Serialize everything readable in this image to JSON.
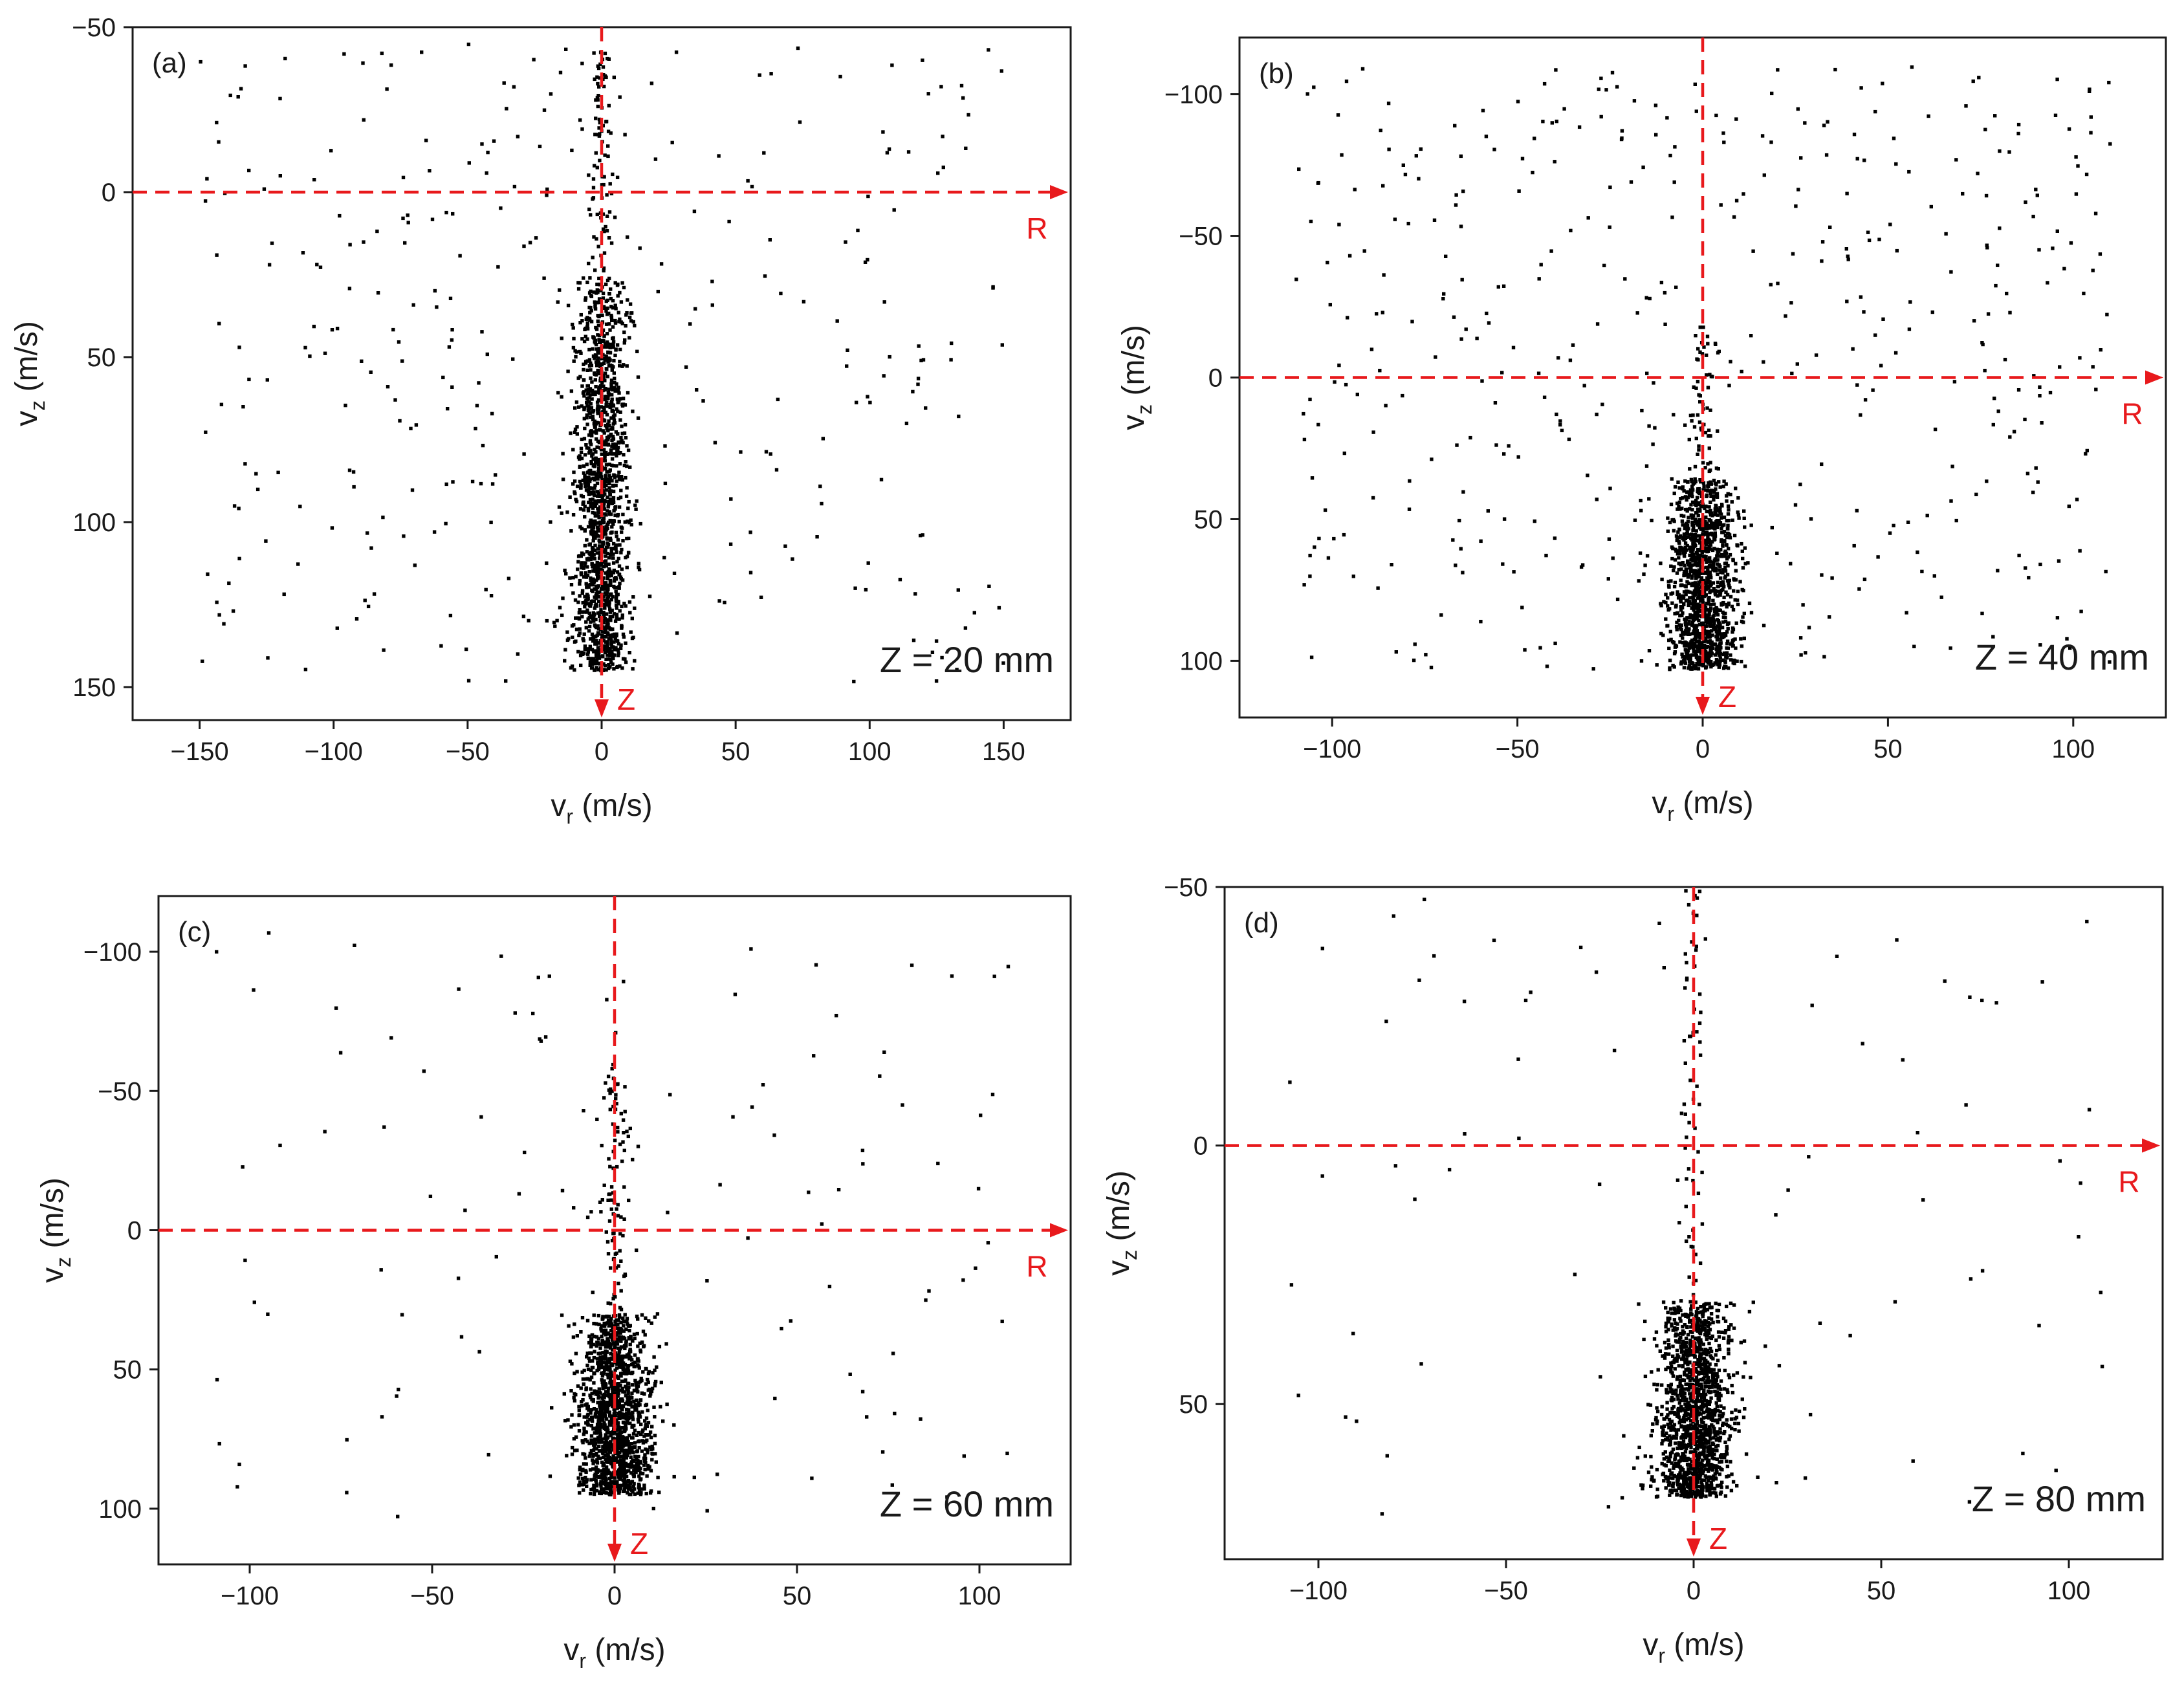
{
  "chart_data": [
    {
      "type": "scatter",
      "panel_label": "(a)",
      "annotation": "Z = 20 mm",
      "xlabel_main": "v",
      "xlabel_sub": "r",
      "xlabel_unit": " (m/s)",
      "ylabel_main": "v",
      "ylabel_sub": "z",
      "ylabel_unit": " (m/s)",
      "xlim": [
        -175,
        175
      ],
      "ylim": [
        -50,
        160
      ],
      "y_inverted": true,
      "xticks": [
        -150,
        -100,
        -50,
        0,
        50,
        100,
        150
      ],
      "yticks": [
        -50,
        0,
        50,
        100,
        150
      ],
      "axis_r_label": "R",
      "axis_z_label": "Z",
      "marker_color": "#000000",
      "axis_line_color": "#e8191c",
      "core": {
        "x_center": 0,
        "x_spread": 5,
        "y_from": 25,
        "y_to": 145,
        "count": 1500
      },
      "sparse": {
        "x_range": [
          -150,
          150
        ],
        "y_range": [
          -45,
          150
        ],
        "count": 330
      },
      "stem": {
        "x_spread": 2.2,
        "y_from": -45,
        "y_to": 25,
        "count": 90
      }
    },
    {
      "type": "scatter",
      "panel_label": "(b)",
      "annotation": "Z = 40 mm",
      "xlabel_main": "v",
      "xlabel_sub": "r",
      "xlabel_unit": " (m/s)",
      "ylabel_main": "v",
      "ylabel_sub": "z",
      "ylabel_unit": " (m/s)",
      "xlim": [
        -125,
        125
      ],
      "ylim": [
        -120,
        120
      ],
      "y_inverted": true,
      "xticks": [
        -100,
        -50,
        0,
        50,
        100
      ],
      "yticks": [
        -100,
        -50,
        0,
        50,
        100
      ],
      "axis_r_label": "R",
      "axis_z_label": "Z",
      "marker_color": "#000000",
      "axis_line_color": "#e8191c",
      "core": {
        "x_center": 0,
        "x_spread": 4.5,
        "y_from": 35,
        "y_to": 103,
        "count": 1300
      },
      "sparse": {
        "x_range": [
          -110,
          110
        ],
        "y_range": [
          -110,
          103
        ],
        "count": 440
      },
      "stem": {
        "x_spread": 2.0,
        "y_from": -20,
        "y_to": 35,
        "count": 60
      }
    },
    {
      "type": "scatter",
      "panel_label": "(c)",
      "annotation": "Z = 60 mm",
      "xlabel_main": "v",
      "xlabel_sub": "r",
      "xlabel_unit": " (m/s)",
      "ylabel_main": "v",
      "ylabel_sub": "z",
      "ylabel_unit": " (m/s)",
      "xlim": [
        -125,
        125
      ],
      "ylim": [
        -120,
        120
      ],
      "y_inverted": true,
      "xticks": [
        -100,
        -50,
        0,
        50,
        100
      ],
      "yticks": [
        -100,
        -50,
        0,
        50,
        100
      ],
      "axis_r_label": "R",
      "axis_z_label": "Z",
      "marker_color": "#000000",
      "axis_line_color": "#e8191c",
      "core": {
        "x_center": 0,
        "x_spread": 5,
        "y_from": 30,
        "y_to": 95,
        "count": 1400
      },
      "sparse": {
        "x_range": [
          -110,
          110
        ],
        "y_range": [
          -110,
          105
        ],
        "count": 120
      },
      "stem": {
        "x_spread": 1.8,
        "y_from": -60,
        "y_to": 30,
        "count": 90
      }
    },
    {
      "type": "scatter",
      "panel_label": "(d)",
      "annotation": "Z = 80 mm",
      "xlabel_main": "v",
      "xlabel_sub": "r",
      "xlabel_unit": " (m/s)",
      "ylabel_main": "v",
      "ylabel_sub": "z",
      "ylabel_unit": " (m/s)",
      "xlim": [
        -125,
        125
      ],
      "ylim": [
        -50,
        80
      ],
      "y_inverted": true,
      "xticks": [
        -100,
        -50,
        0,
        50,
        100
      ],
      "yticks": [
        -50,
        0,
        50
      ],
      "axis_r_label": "R",
      "axis_z_label": "Z",
      "marker_color": "#000000",
      "axis_line_color": "#e8191c",
      "core": {
        "x_center": 0,
        "x_spread": 5,
        "y_from": 30,
        "y_to": 68,
        "count": 1400
      },
      "sparse": {
        "x_range": [
          -110,
          110
        ],
        "y_range": [
          -48,
          72
        ],
        "count": 80
      },
      "stem": {
        "x_spread": 1.5,
        "y_from": -50,
        "y_to": 30,
        "count": 60
      }
    }
  ]
}
